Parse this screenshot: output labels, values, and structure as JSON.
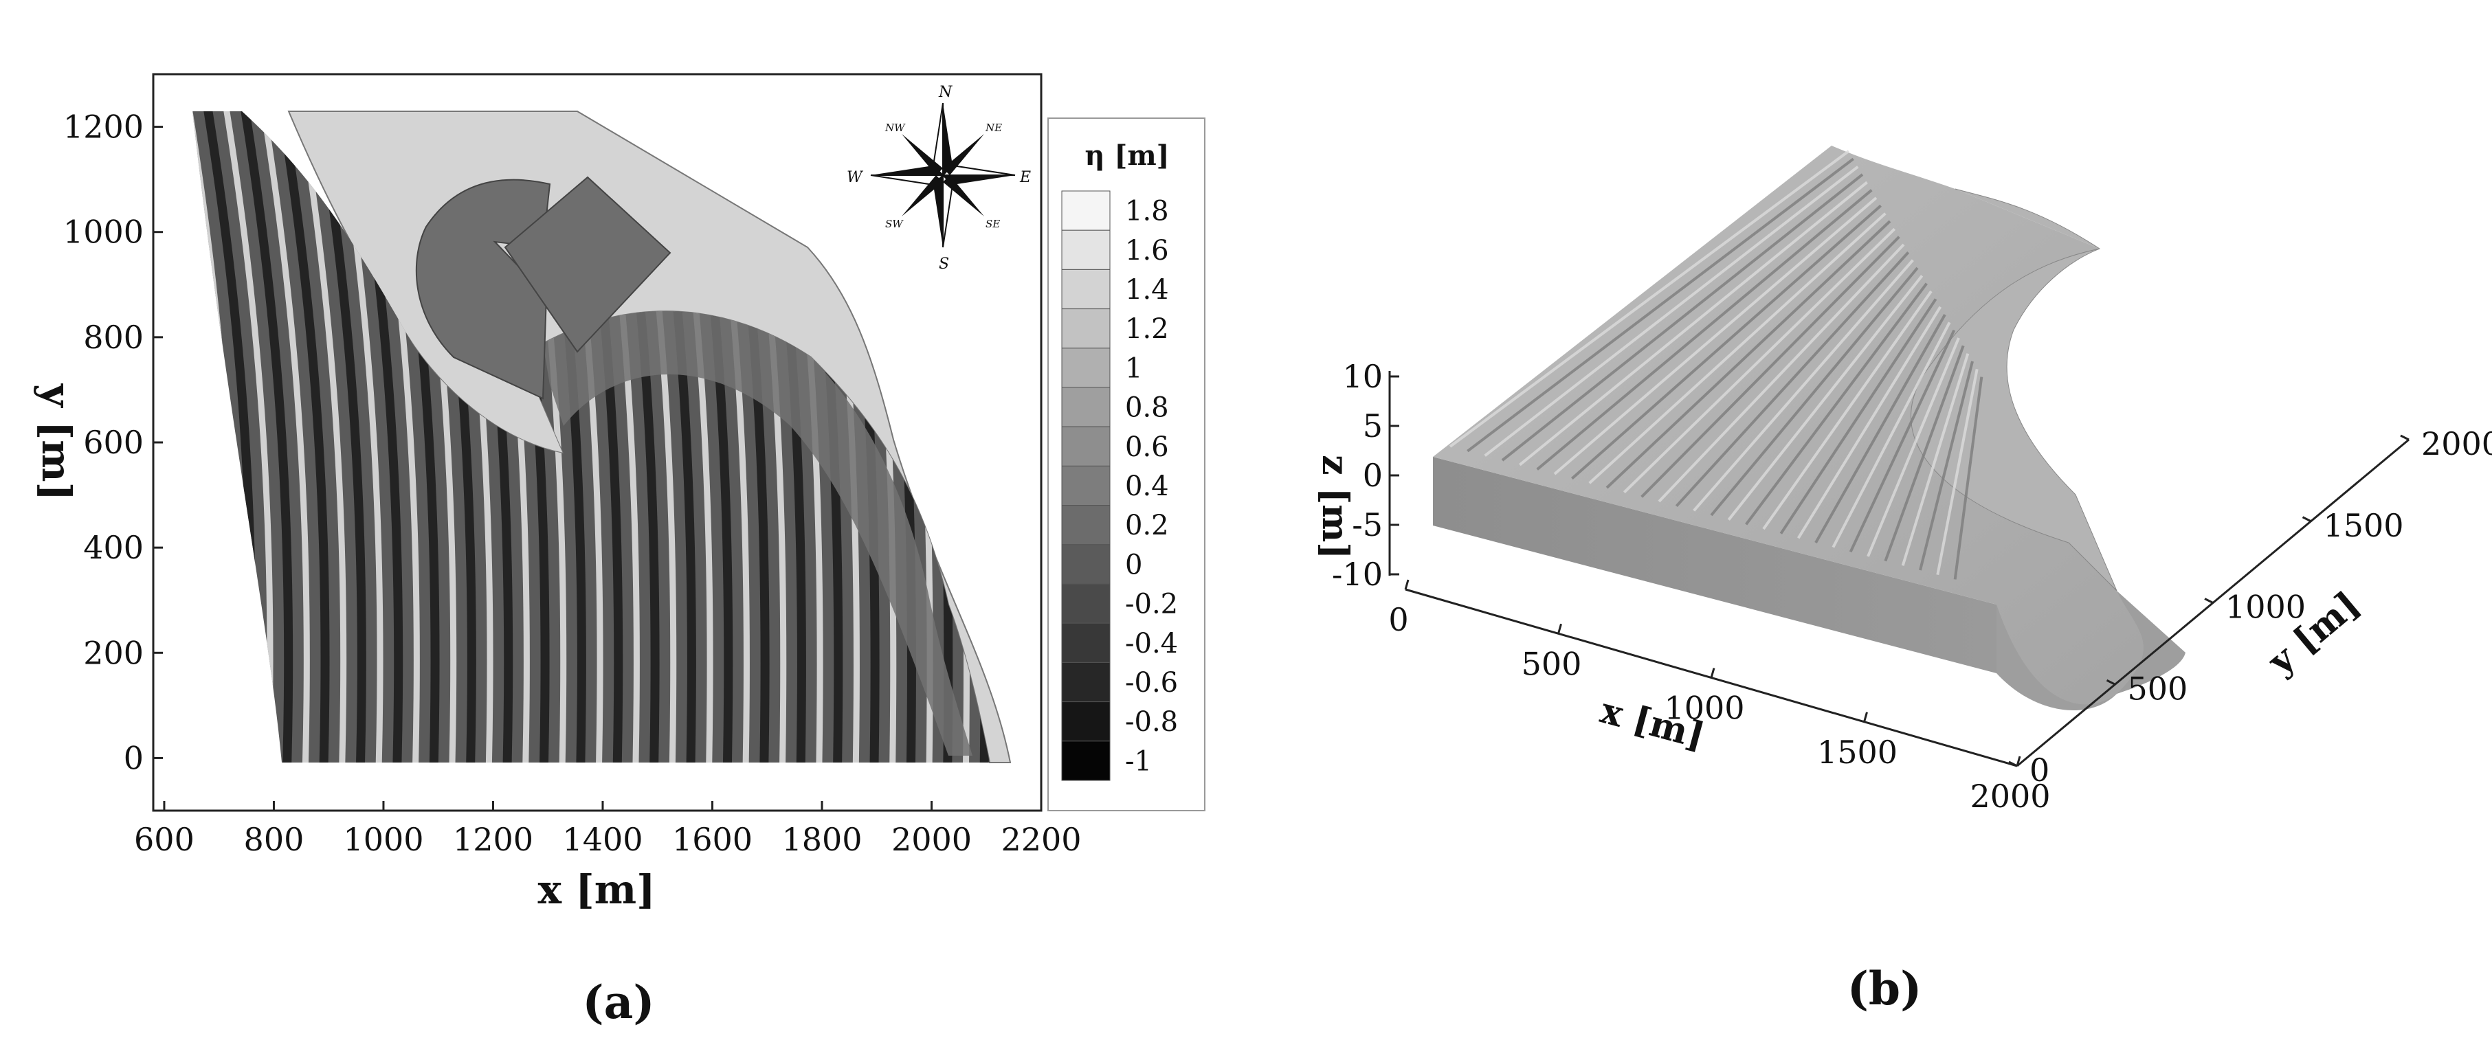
{
  "chart_data": [
    {
      "type": "heatmap",
      "caption": "(a)",
      "xlabel": "x [m]",
      "ylabel": "y [m]",
      "xlim": [
        580,
        2200
      ],
      "ylim": [
        -100,
        1300
      ],
      "xticks": [
        "600",
        "800",
        "1000",
        "1200",
        "1400",
        "1600",
        "1800",
        "2000",
        "2200"
      ],
      "yticks": [
        "0",
        "200",
        "400",
        "600",
        "800",
        "1000",
        "1200"
      ],
      "colorbar": {
        "title": "η [m]",
        "levels": [
          "1.8",
          "1.6",
          "1.4",
          "1.2",
          "1",
          "0.8",
          "0.6",
          "0.4",
          "0.2",
          "0",
          "-0.2",
          "-0.4",
          "-0.6",
          "-0.8",
          "-1"
        ]
      },
      "compass": {
        "N": "N",
        "S": "S",
        "E": "E",
        "W": "W",
        "NE": "NE",
        "NW": "NW",
        "SE": "SE",
        "SW": "SW"
      },
      "colors": {
        "land": "#d4d4d4",
        "structure": "#6e6e6e",
        "crest": "#f2f2f2",
        "trough": "#111111"
      }
    },
    {
      "type": "surface",
      "caption": "(b)",
      "xlabel": "x [m]",
      "ylabel": "y [m]",
      "zlabel": "z [m]",
      "xticks": [
        "0",
        "500",
        "1000",
        "1500",
        "2000"
      ],
      "yticks": [
        "0",
        "500",
        "1000",
        "1500",
        "2000"
      ],
      "zticks": [
        "10",
        "5",
        "0",
        "-5",
        "-10"
      ]
    }
  ]
}
